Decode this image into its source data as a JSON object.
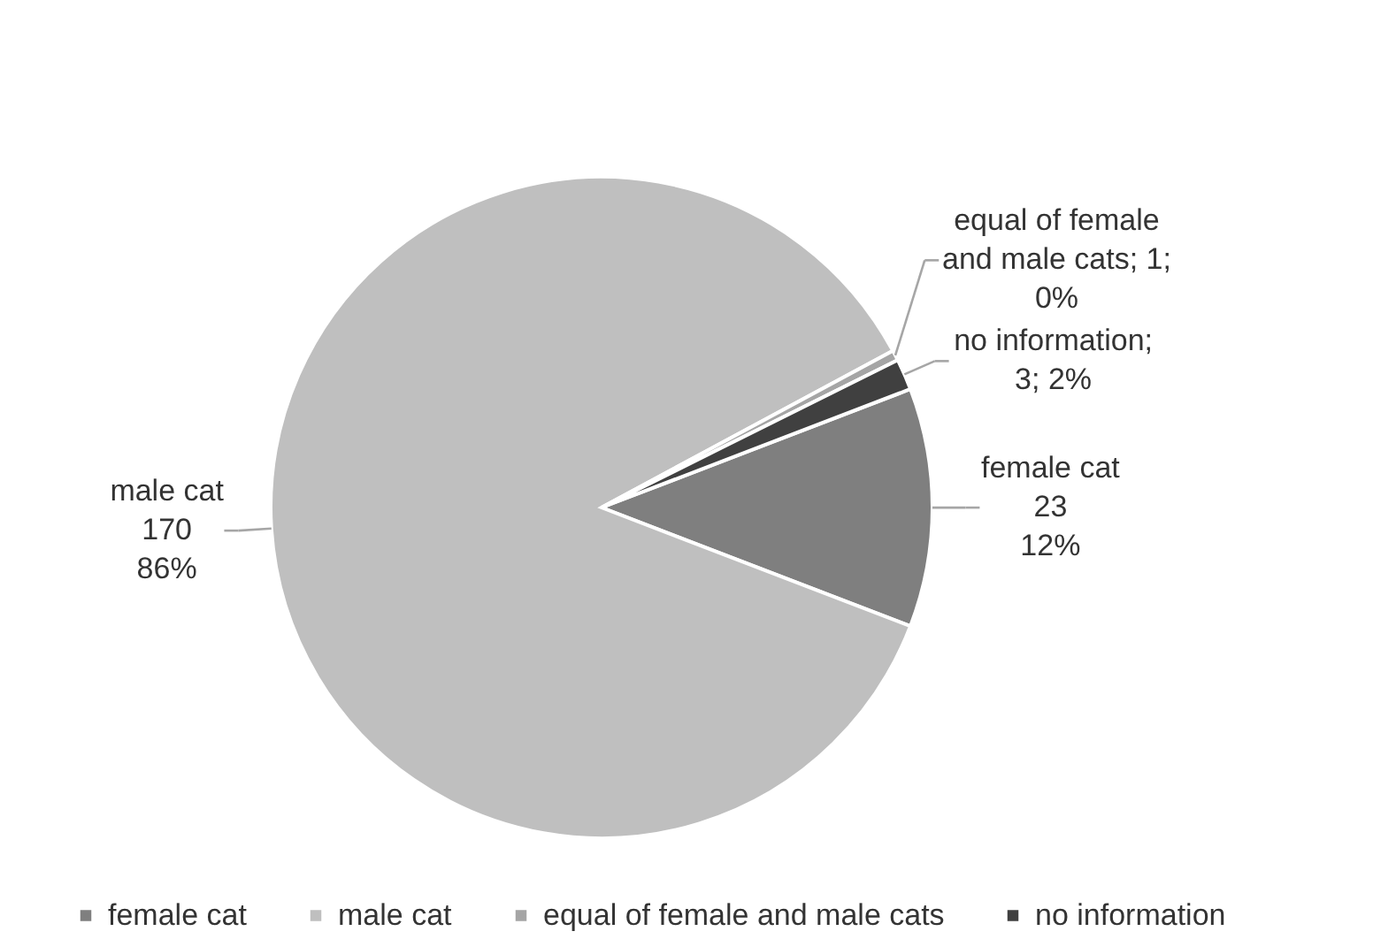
{
  "chart_data": {
    "type": "pie",
    "categories": [
      "female cat",
      "male cat",
      "equal of female and male cats",
      "no information"
    ],
    "values": [
      23,
      170,
      1,
      3
    ],
    "colors": [
      "#7f7f7f",
      "#bfbfbf",
      "#a5a5a5",
      "#404040"
    ],
    "value_labels": [
      "female cat\n23\n12%",
      "male cat\n170\n86%",
      "equal of female\nand male cats; 1;\n0%",
      "no information;\n3; 2%"
    ],
    "legend": "bottom"
  }
}
